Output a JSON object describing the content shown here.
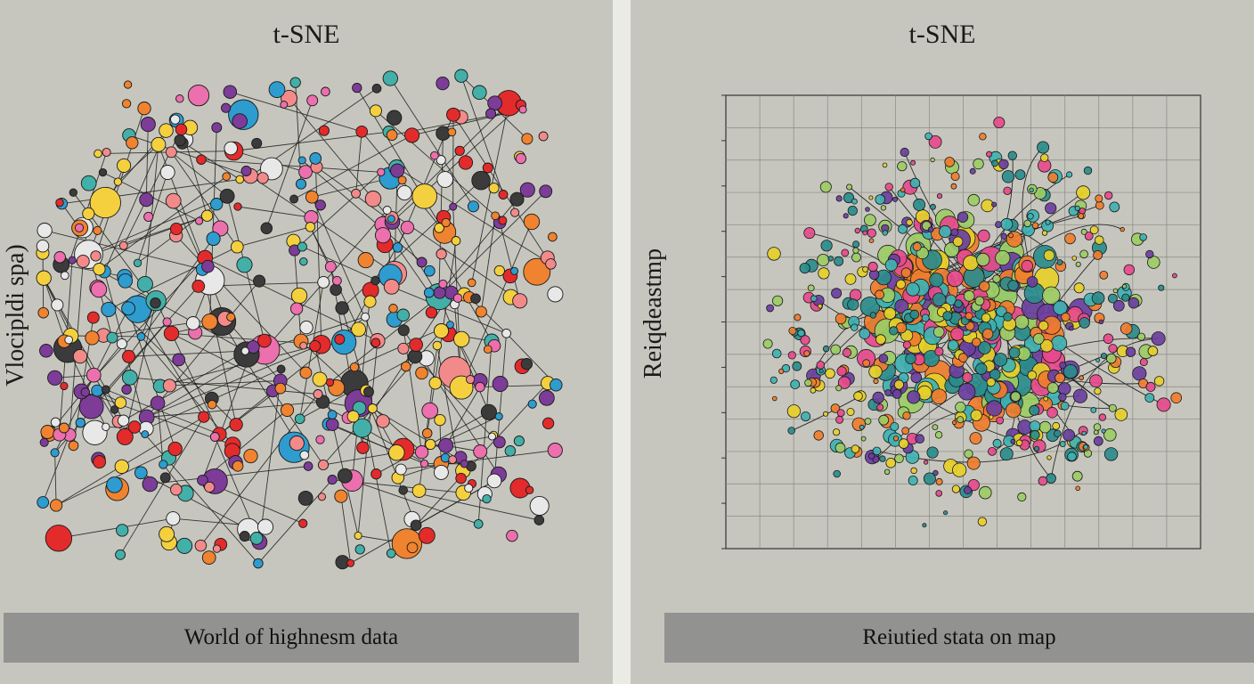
{
  "chart_data": [
    {
      "type": "scatter",
      "title": "t-SNE",
      "ylabel": "Vlocipldi spa)",
      "xlabel": "",
      "caption": "World of highnesm data",
      "grid": false,
      "point_colors": [
        "#e32b2b",
        "#f4d03f",
        "#7d3c98",
        "#2e9ccf",
        "#ec6fae",
        "#f0832f",
        "#e8e8e8",
        "#3b3b3b",
        "#42b0a8",
        "#f28a8a"
      ]
    },
    {
      "type": "scatter",
      "title": "t-SNE",
      "ylabel": "Reiqdeastmp",
      "xlabel": "",
      "caption": "Reiutied stata on map",
      "grid": true,
      "point_colors": [
        "#e6cf2a",
        "#3fb2b3",
        "#6b3fa0",
        "#e64a8c",
        "#ef7d2e",
        "#9ccc65",
        "#2a8c8c"
      ]
    }
  ]
}
